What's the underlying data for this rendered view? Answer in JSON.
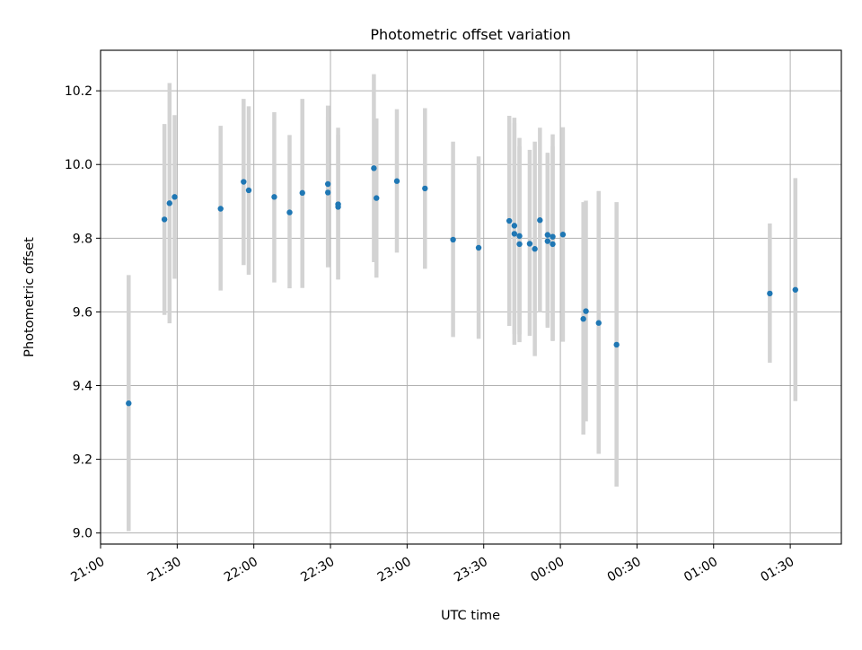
{
  "chart_data": {
    "type": "scatter",
    "title": "Photometric offset variation",
    "xlabel": "UTC time",
    "ylabel": "Photometric offset",
    "x_axis_kind": "time",
    "xlim": [
      "21:00",
      "01:50"
    ],
    "ylim": [
      8.97,
      10.31
    ],
    "x_ticks": [
      "21:00",
      "21:30",
      "22:00",
      "22:30",
      "23:00",
      "23:30",
      "00:00",
      "00:30",
      "01:00",
      "01:30"
    ],
    "y_ticks": [
      "9.0",
      "9.2",
      "9.4",
      "9.6",
      "9.8",
      "10.0",
      "10.2"
    ],
    "grid": true,
    "point_color": "#1f77b4",
    "errorbar_color": "#d3d3d3",
    "points": [
      {
        "x": "21:11",
        "y": 9.352,
        "lo": 9.005,
        "hi": 9.7
      },
      {
        "x": "21:25",
        "y": 9.851,
        "lo": 9.592,
        "hi": 10.11
      },
      {
        "x": "21:27",
        "y": 9.895,
        "lo": 9.569,
        "hi": 10.221
      },
      {
        "x": "21:29",
        "y": 9.912,
        "lo": 9.69,
        "hi": 10.134
      },
      {
        "x": "21:47",
        "y": 9.88,
        "lo": 9.658,
        "hi": 10.105
      },
      {
        "x": "21:56",
        "y": 9.953,
        "lo": 9.727,
        "hi": 10.178
      },
      {
        "x": "21:58",
        "y": 9.93,
        "lo": 9.701,
        "hi": 10.158
      },
      {
        "x": "22:08",
        "y": 9.912,
        "lo": 9.68,
        "hi": 10.142
      },
      {
        "x": "22:14",
        "y": 9.87,
        "lo": 9.664,
        "hi": 10.08
      },
      {
        "x": "22:19",
        "y": 9.923,
        "lo": 9.665,
        "hi": 10.178
      },
      {
        "x": "22:29",
        "y": 9.947,
        "lo": 9.742,
        "hi": 10.16
      },
      {
        "x": "22:29",
        "y": 9.924,
        "lo": 9.721,
        "hi": 10.13
      },
      {
        "x": "22:33",
        "y": 9.892,
        "lo": 9.688,
        "hi": 10.1
      },
      {
        "x": "22:33",
        "y": 9.885,
        "lo": 9.688,
        "hi": 10.081
      },
      {
        "x": "22:47",
        "y": 9.99,
        "lo": 9.735,
        "hi": 10.245
      },
      {
        "x": "22:48",
        "y": 9.909,
        "lo": 9.693,
        "hi": 10.125
      },
      {
        "x": "22:56",
        "y": 9.955,
        "lo": 9.761,
        "hi": 10.15
      },
      {
        "x": "23:07",
        "y": 9.935,
        "lo": 9.717,
        "hi": 10.153
      },
      {
        "x": "23:18",
        "y": 9.796,
        "lo": 9.532,
        "hi": 10.062
      },
      {
        "x": "23:28",
        "y": 9.774,
        "lo": 9.527,
        "hi": 10.022
      },
      {
        "x": "23:40",
        "y": 9.847,
        "lo": 9.562,
        "hi": 10.132
      },
      {
        "x": "23:42",
        "y": 9.834,
        "lo": 9.54,
        "hi": 10.127
      },
      {
        "x": "23:42",
        "y": 9.812,
        "lo": 9.511,
        "hi": 10.113
      },
      {
        "x": "23:44",
        "y": 9.806,
        "lo": 9.539,
        "hi": 10.072
      },
      {
        "x": "23:44",
        "y": 9.784,
        "lo": 9.518,
        "hi": 10.049
      },
      {
        "x": "23:48",
        "y": 9.785,
        "lo": 9.535,
        "hi": 10.04
      },
      {
        "x": "23:50",
        "y": 9.771,
        "lo": 9.48,
        "hi": 10.062
      },
      {
        "x": "23:52",
        "y": 9.849,
        "lo": 9.599,
        "hi": 10.1
      },
      {
        "x": "23:55",
        "y": 9.809,
        "lo": 9.561,
        "hi": 10.032
      },
      {
        "x": "23:55",
        "y": 9.792,
        "lo": 9.557,
        "hi": 10.028
      },
      {
        "x": "23:57",
        "y": 9.784,
        "lo": 9.521,
        "hi": 10.049
      },
      {
        "x": "23:57",
        "y": 9.804,
        "lo": 9.523,
        "hi": 10.082
      },
      {
        "x": "00:01",
        "y": 9.81,
        "lo": 9.519,
        "hi": 10.101
      },
      {
        "x": "00:09",
        "y": 9.581,
        "lo": 9.267,
        "hi": 9.898
      },
      {
        "x": "00:10",
        "y": 9.602,
        "lo": 9.303,
        "hi": 9.902
      },
      {
        "x": "00:15",
        "y": 9.57,
        "lo": 9.215,
        "hi": 9.928
      },
      {
        "x": "00:22",
        "y": 9.511,
        "lo": 9.126,
        "hi": 9.898
      },
      {
        "x": "01:22",
        "y": 9.65,
        "lo": 9.462,
        "hi": 9.84
      },
      {
        "x": "01:32",
        "y": 9.66,
        "lo": 9.358,
        "hi": 9.963
      }
    ]
  }
}
